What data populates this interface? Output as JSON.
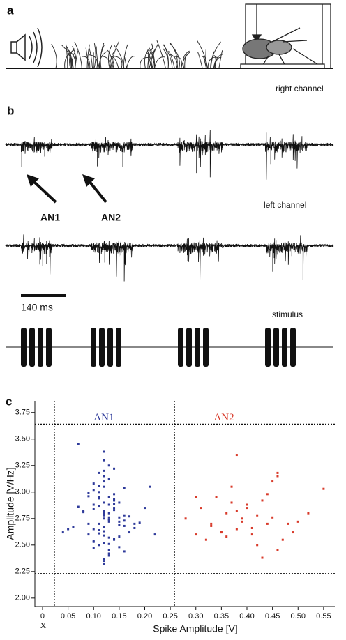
{
  "panels": {
    "a": "a",
    "b": "b",
    "c": "c"
  },
  "recording": {
    "right_channel": "right channel",
    "left_channel": "left channel",
    "arrow_labels": [
      "AN1",
      "AN2"
    ],
    "scale_bar": "140 ms",
    "stimulus": "stimulus"
  },
  "chart_data": {
    "type": "scatter",
    "ylabel": "Amplitude [V/Hz]",
    "xlabel": "Spike Amplitude [V]",
    "x_note": "X",
    "xlim": [
      -0.015,
      0.572
    ],
    "ylim": [
      1.92,
      3.86
    ],
    "xticks": [
      0,
      0.05,
      {
        "value": 0.1,
        "label": "0.10"
      },
      0.15,
      {
        "value": 0.2,
        "label": "0.20"
      },
      0.25,
      {
        "value": 0.3,
        "label": "0.30"
      },
      0.35,
      {
        "value": 0.4,
        "label": "0.40"
      },
      0.45,
      {
        "value": 0.5,
        "label": "0.50"
      },
      0.55
    ],
    "yticks": [
      {
        "value": 2,
        "label": "2.00"
      },
      2.25,
      {
        "value": 2.5,
        "label": "2.50"
      },
      2.75,
      {
        "value": 3,
        "label": "3.00"
      },
      3.25,
      {
        "value": 3.5,
        "label": "3.50"
      },
      3.75
    ],
    "reference_lines": {
      "x": [
        0.023,
        0.258
      ],
      "y": [
        2.23,
        3.64
      ]
    },
    "series": [
      {
        "name": "AN1",
        "color": "#2e3a9a",
        "label_x": 0.12,
        "label_y": 3.7,
        "x": [
          0.12,
          0.13,
          0.11,
          0.14,
          0.1,
          0.12,
          0.15,
          0.09,
          0.13,
          0.12,
          0.11,
          0.16,
          0.08,
          0.14,
          0.12,
          0.13,
          0.1,
          0.17,
          0.12,
          0.11,
          0.13,
          0.14,
          0.09,
          0.15,
          0.12,
          0.1,
          0.13,
          0.18,
          0.07,
          0.12,
          0.11,
          0.14,
          0.13,
          0.12,
          0.16,
          0.1,
          0.12,
          0.15,
          0.11,
          0.13,
          0.06,
          0.19,
          0.12,
          0.14,
          0.1,
          0.13,
          0.12,
          0.11,
          0.15,
          0.09,
          0.13,
          0.12,
          0.17,
          0.1,
          0.14,
          0.12,
          0.11,
          0.13,
          0.08,
          0.16,
          0.12,
          0.14,
          0.05,
          0.2,
          0.12,
          0.13,
          0.11,
          0.1,
          0.15,
          0.12,
          0.14,
          0.13,
          0.09,
          0.22,
          0.12,
          0.11,
          0.16,
          0.13,
          0.1,
          0.12,
          0.14,
          0.15,
          0.11,
          0.07,
          0.18,
          0.13,
          0.12,
          0.21,
          0.04,
          0.16
        ],
        "values": [
          2.75,
          2.8,
          2.7,
          2.85,
          2.65,
          2.9,
          2.72,
          2.6,
          2.95,
          2.78,
          3.0,
          2.68,
          2.82,
          2.55,
          3.05,
          2.74,
          2.88,
          2.62,
          3.1,
          2.5,
          2.76,
          2.92,
          2.7,
          2.58,
          3.15,
          2.84,
          2.45,
          2.66,
          2.86,
          3.2,
          2.64,
          2.98,
          2.4,
          2.8,
          2.73,
          3.02,
          2.52,
          2.69,
          2.94,
          3.25,
          2.67,
          2.71,
          2.35,
          2.83,
          3.08,
          2.57,
          2.79,
          2.87,
          2.48,
          2.96,
          3.12,
          2.63,
          2.77,
          2.54,
          2.89,
          3.3,
          2.61,
          2.42,
          2.81,
          3.04,
          2.59,
          2.93,
          2.65,
          2.85,
          2.32,
          2.74,
          3.18,
          2.47,
          2.9,
          3.38,
          2.56,
          2.72,
          2.99,
          2.6,
          2.67,
          3.06,
          2.44,
          2.88,
          2.53,
          2.37,
          3.22,
          2.76,
          2.95,
          3.45,
          2.7,
          2.51,
          2.82,
          3.05,
          2.62,
          2.78
        ]
      },
      {
        "name": "AN2",
        "color": "#d83a2a",
        "label_x": 0.355,
        "label_y": 3.7,
        "x": [
          0.28,
          0.3,
          0.31,
          0.32,
          0.33,
          0.34,
          0.35,
          0.36,
          0.37,
          0.38,
          0.38,
          0.39,
          0.4,
          0.41,
          0.42,
          0.43,
          0.44,
          0.45,
          0.46,
          0.47,
          0.3,
          0.33,
          0.35,
          0.37,
          0.39,
          0.4,
          0.42,
          0.44,
          0.46,
          0.48,
          0.36,
          0.38,
          0.41,
          0.43,
          0.45,
          0.46,
          0.49,
          0.5,
          0.52,
          0.55
        ],
        "values": [
          2.75,
          2.6,
          2.85,
          2.55,
          2.7,
          2.95,
          2.62,
          2.8,
          2.9,
          3.35,
          2.65,
          2.75,
          2.88,
          2.6,
          2.78,
          2.38,
          2.7,
          3.1,
          3.18,
          2.55,
          2.95,
          2.68,
          2.62,
          3.05,
          2.72,
          2.85,
          2.5,
          2.98,
          2.45,
          2.7,
          2.58,
          2.82,
          2.66,
          2.92,
          2.76,
          3.15,
          2.62,
          2.72,
          2.8,
          3.03
        ]
      }
    ]
  }
}
